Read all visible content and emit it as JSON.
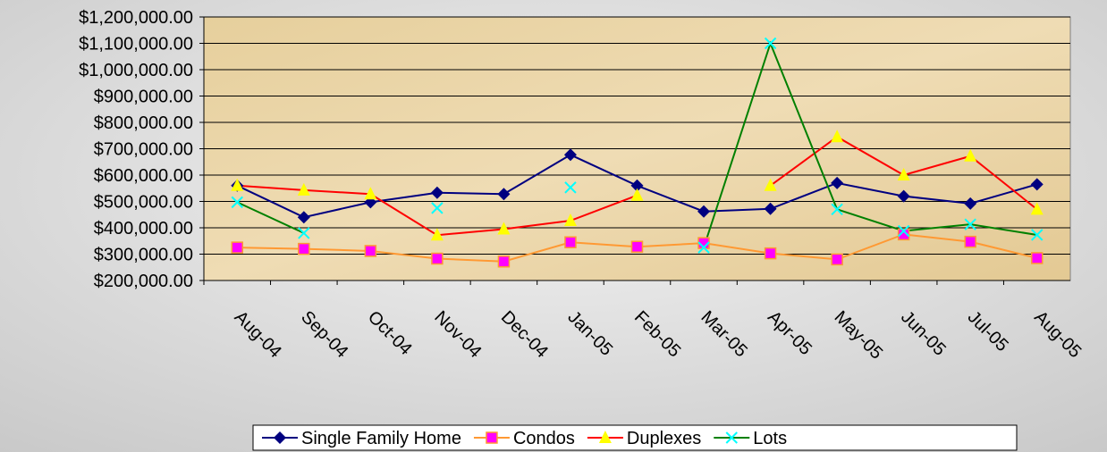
{
  "chart_data": {
    "type": "line",
    "categories": [
      "Aug-04",
      "Sep-04",
      "Oct-04",
      "Nov-04",
      "Dec-04",
      "Jan-05",
      "Feb-05",
      "Mar-05",
      "Apr-05",
      "May-05",
      "Jun-05",
      "Jul-05",
      "Aug-05"
    ],
    "series": [
      {
        "name": "Single Family Home",
        "color": "#000080",
        "marker": "diamond",
        "marker_color": "#000080",
        "values": [
          560000,
          440000,
          497000,
          533000,
          528000,
          677000,
          560000,
          462000,
          472000,
          570000,
          520000,
          492000,
          565000
        ]
      },
      {
        "name": "Condos",
        "color": "#ff9933",
        "marker": "square",
        "marker_color": "#ff00ff",
        "values": [
          325000,
          320000,
          312000,
          283000,
          272000,
          345000,
          328000,
          342000,
          303000,
          280000,
          375000,
          347000,
          285000
        ]
      },
      {
        "name": "Duplexes",
        "color": "#ff0000",
        "marker": "triangle",
        "marker_color": "#ffff00",
        "values": [
          560000,
          543000,
          528000,
          372000,
          395000,
          427000,
          523000,
          null,
          560000,
          745000,
          600000,
          672000,
          470000
        ]
      },
      {
        "name": "Lots",
        "color": "#008000",
        "marker": "x",
        "marker_color": "#00ffff",
        "values": [
          497000,
          380000,
          null,
          475000,
          null,
          553000,
          null,
          325000,
          1100000,
          470000,
          388000,
          413000,
          373000
        ]
      }
    ],
    "ylim": [
      200000,
      1200000
    ],
    "yticks": [
      {
        "value": 200000,
        "label": "$200,000.00"
      },
      {
        "value": 300000,
        "label": "$300,000.00"
      },
      {
        "value": 400000,
        "label": "$400,000.00"
      },
      {
        "value": 500000,
        "label": "$500,000.00"
      },
      {
        "value": 600000,
        "label": "$600,000.00"
      },
      {
        "value": 700000,
        "label": "$700,000.00"
      },
      {
        "value": 800000,
        "label": "$800,000.00"
      },
      {
        "value": 900000,
        "label": "$900,000.00"
      },
      {
        "value": 1000000,
        "label": "$1,000,000.00"
      },
      {
        "value": 1100000,
        "label": "$1,100,000.00"
      },
      {
        "value": 1200000,
        "label": "$1,200,000.00"
      }
    ],
    "grid": true,
    "legend": "bottom"
  }
}
